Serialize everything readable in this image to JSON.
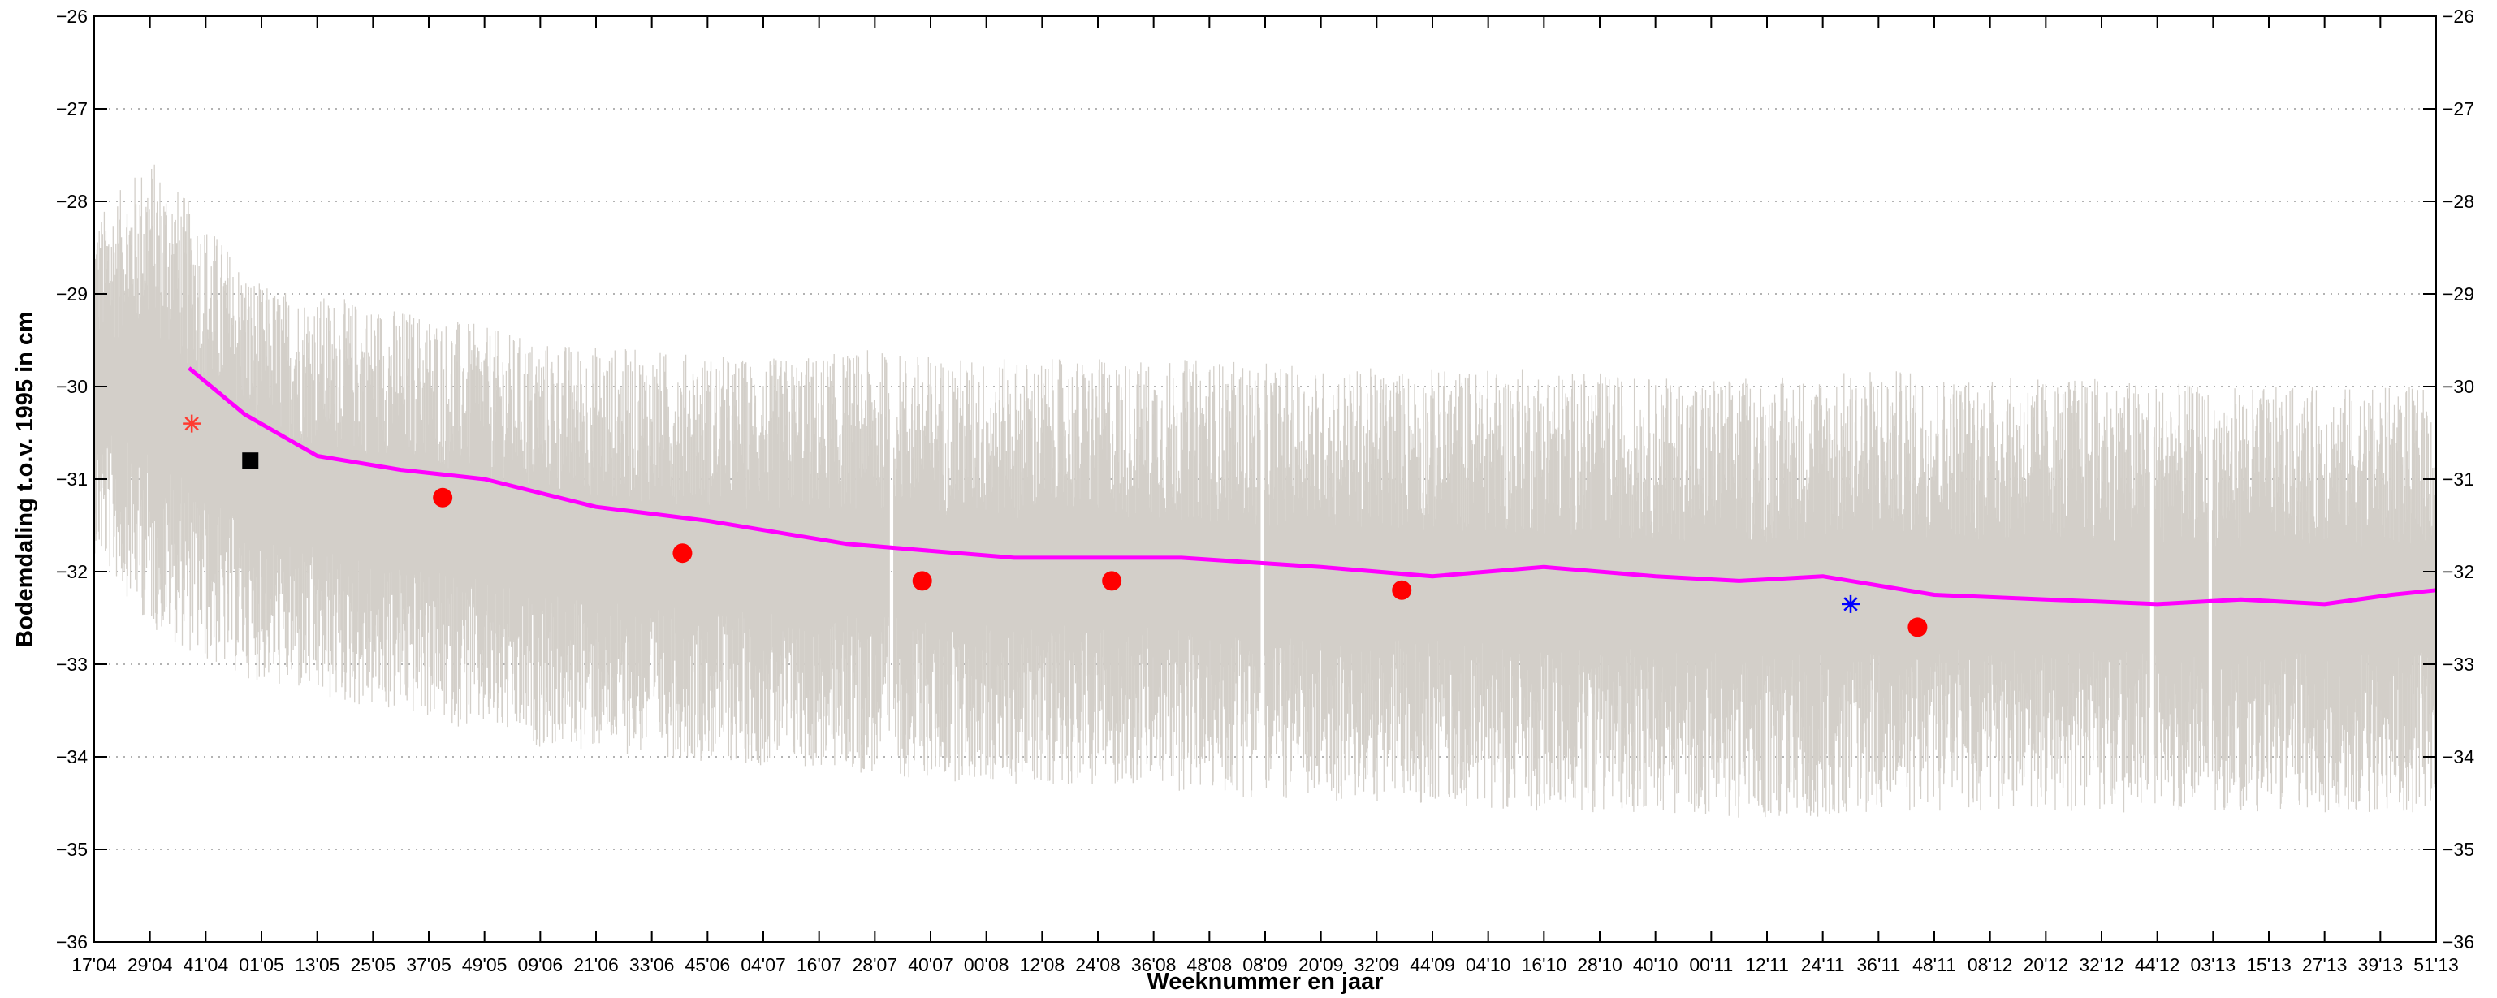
{
  "chart_data": {
    "type": "line",
    "title": "",
    "xlabel": "Weeknummer en jaar",
    "ylabel": "Bodemdaling t.o.v. 1995 in cm",
    "ylim": [
      -36,
      -26
    ],
    "y_ticks": [
      -36,
      -35,
      -34,
      -33,
      -32,
      -31,
      -30,
      -29,
      -28,
      -27,
      -26
    ],
    "x_tick_labels": [
      "17'04",
      "29'04",
      "41'04",
      "01'05",
      "13'05",
      "25'05",
      "37'05",
      "49'05",
      "09'06",
      "21'06",
      "33'06",
      "45'06",
      "04'07",
      "16'07",
      "28'07",
      "40'07",
      "00'08",
      "12'08",
      "24'08",
      "36'08",
      "48'08",
      "08'09",
      "20'09",
      "32'09",
      "44'09",
      "04'10",
      "16'10",
      "28'10",
      "40'10",
      "00'11",
      "12'11",
      "24'11",
      "36'11",
      "48'11",
      "08'12",
      "20'12",
      "32'12",
      "44'12",
      "03'13",
      "15'13",
      "27'13",
      "39'13",
      "51'13"
    ],
    "grid": "y-dotted",
    "colors": {
      "raw": "#d3cfc9",
      "trend": "#ff00ff",
      "markers": "#ff0000",
      "start_marker": "#ff3b30",
      "reference_square": "#000000",
      "blue_marker": "#0000ff"
    },
    "trend_series": {
      "x": [
        1.7,
        2.7,
        4.0,
        5.5,
        7.0,
        9.0,
        11.0,
        13.5,
        16.5,
        19.5,
        22.0,
        24.0,
        26.0,
        28.0,
        29.5,
        31.0,
        33.0,
        35.0,
        37.0,
        38.5,
        40.0,
        41.2,
        42.0
      ],
      "y": [
        -29.8,
        -30.3,
        -30.75,
        -30.9,
        -31.0,
        -31.3,
        -31.45,
        -31.7,
        -31.85,
        -31.85,
        -31.95,
        -32.05,
        -31.95,
        -32.05,
        -32.1,
        -32.05,
        -32.25,
        -32.3,
        -32.35,
        -32.3,
        -32.35,
        -32.25,
        -32.2
      ]
    },
    "measurements": {
      "x": [
        6.25,
        10.55,
        14.85,
        18.25,
        23.45,
        32.7
      ],
      "y": [
        -31.2,
        -31.8,
        -32.1,
        -32.1,
        -32.2,
        -32.6
      ]
    },
    "start_marker": {
      "x": 1.75,
      "y": -30.4
    },
    "reference_square": {
      "x": 2.8,
      "y": -30.8
    },
    "blue_marker": {
      "x": 31.5,
      "y": -32.35
    },
    "raw_band": {
      "x": [
        0,
        1,
        2,
        3,
        4,
        6,
        8,
        10,
        12,
        14,
        16,
        18,
        20,
        22,
        24,
        26,
        28,
        30,
        32,
        34,
        36,
        38,
        40,
        42
      ],
      "upper": [
        -28.2,
        -27.5,
        -28.2,
        -28.9,
        -29.0,
        -29.2,
        -29.5,
        -29.6,
        -29.7,
        -29.6,
        -29.7,
        -29.7,
        -29.7,
        -29.8,
        -29.8,
        -29.8,
        -29.9,
        -29.9,
        -29.8,
        -29.9,
        -29.9,
        -30.0,
        -30.0,
        -30.0
      ],
      "lower": [
        -31.8,
        -32.6,
        -33.0,
        -33.2,
        -33.4,
        -33.6,
        -33.9,
        -34.0,
        -34.1,
        -34.2,
        -34.3,
        -34.3,
        -34.4,
        -34.5,
        -34.5,
        -34.6,
        -34.6,
        -34.7,
        -34.6,
        -34.6,
        -34.6,
        -34.6,
        -34.6,
        -34.6
      ]
    },
    "raw_gaps_x": [
      14.3,
      20.95,
      36.9,
      37.95
    ]
  }
}
